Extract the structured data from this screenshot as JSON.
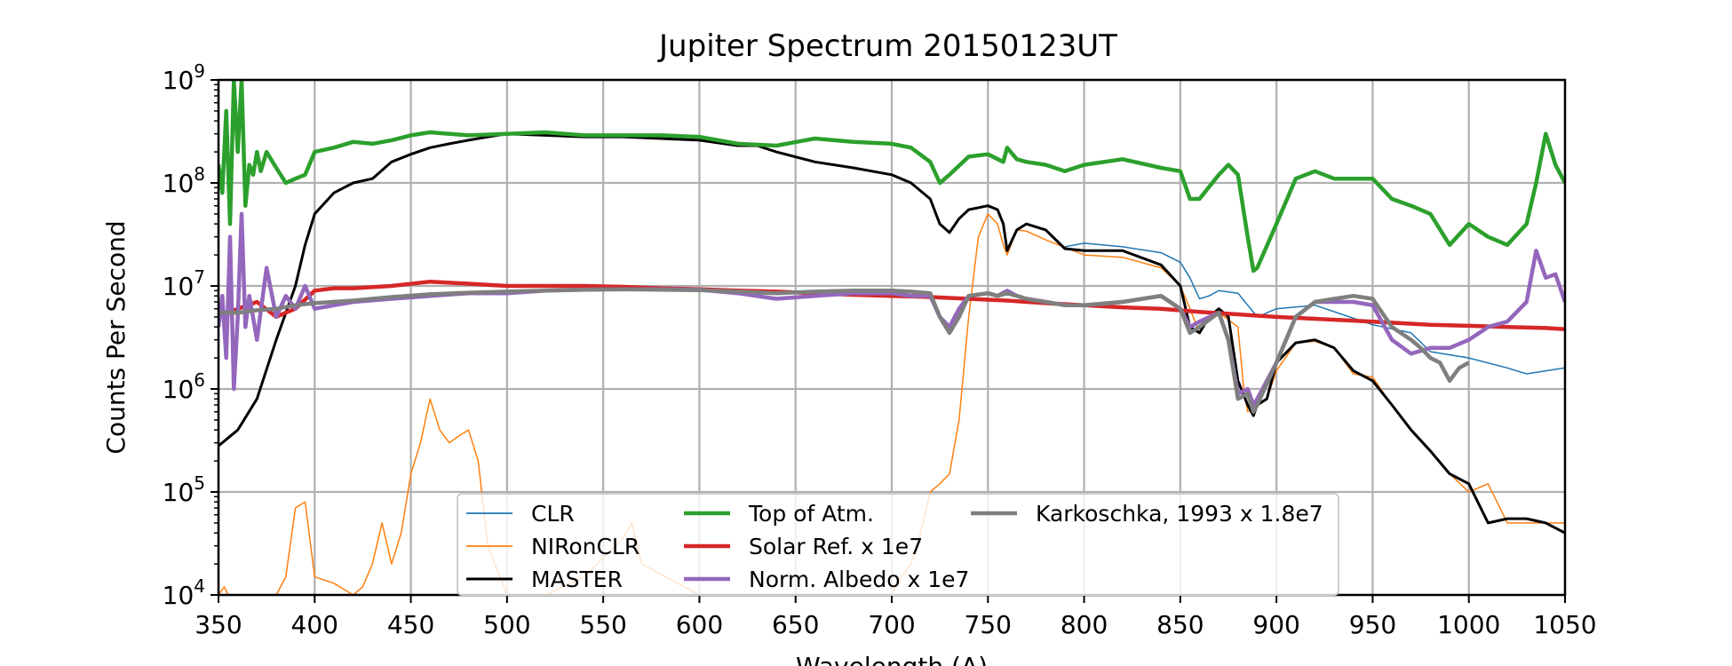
{
  "chart_data": {
    "type": "line",
    "title": "Jupiter Spectrum 20150123UT",
    "xlabel": "Wavelength (A)",
    "ylabel": "Counts Per Second",
    "xlim": [
      350,
      1050
    ],
    "ylim": [
      10000,
      1000000000
    ],
    "yscale": "log",
    "grid": true,
    "legend_position": "lower-center",
    "x_ticks": [
      "350",
      "400",
      "450",
      "500",
      "550",
      "600",
      "650",
      "700",
      "750",
      "800",
      "850",
      "900",
      "950",
      "1000",
      "1050"
    ],
    "y_ticks": [
      {
        "base": "10",
        "exp": "4",
        "value": 10000
      },
      {
        "base": "10",
        "exp": "5",
        "value": 100000
      },
      {
        "base": "10",
        "exp": "6",
        "value": 1000000
      },
      {
        "base": "10",
        "exp": "7",
        "value": 10000000
      },
      {
        "base": "10",
        "exp": "8",
        "value": 100000000
      },
      {
        "base": "10",
        "exp": "9",
        "value": 1000000000
      }
    ],
    "series": [
      {
        "name": "CLR",
        "color": "#1f77b4",
        "width": 1.5,
        "x": [
          790,
          800,
          820,
          840,
          850,
          855,
          860,
          865,
          870,
          880,
          890,
          900,
          920,
          950,
          970,
          980,
          1000,
          1020,
          1030,
          1040,
          1050
        ],
        "y": [
          24000000.0,
          26000000.0,
          24000000.0,
          21000000.0,
          17000000.0,
          12000000.0,
          7500000.0,
          8000000.0,
          9000000.0,
          8500000.0,
          5000000.0,
          6000000.0,
          6500000.0,
          4200000.0,
          3500000.0,
          2300000.0,
          2000000.0,
          1600000.0,
          1400000.0,
          1500000.0,
          1600000.0
        ]
      },
      {
        "name": "NIRonCLR",
        "color": "#ff7f0e",
        "width": 1.5,
        "x": [
          350,
          353,
          355,
          360,
          370,
          380,
          385,
          390,
          395,
          400,
          410,
          420,
          425,
          430,
          435,
          440,
          445,
          450,
          455,
          460,
          465,
          470,
          475,
          480,
          485,
          490,
          500,
          520,
          540,
          560,
          565,
          570,
          600,
          650,
          700,
          705,
          710,
          715,
          720,
          725,
          730,
          735,
          740,
          745,
          750,
          755,
          758,
          760,
          765,
          770,
          780,
          800,
          820,
          840,
          850,
          855,
          860,
          865,
          870,
          880,
          883,
          885,
          890,
          895,
          900,
          910,
          920,
          930,
          940,
          950,
          960,
          970,
          980,
          990,
          1000,
          1010,
          1020,
          1030,
          1040,
          1050
        ],
        "y": [
          10000.0,
          12000.0,
          10000.0,
          10000.0,
          10000.0,
          10000.0,
          15000.0,
          70000.0,
          80000.0,
          15000.0,
          13000.0,
          10000.0,
          12000.0,
          20000.0,
          50000.0,
          20000.0,
          40000.0,
          150000.0,
          300000.0,
          800000.0,
          400000.0,
          300000.0,
          350000.0,
          400000.0,
          200000.0,
          30000.0,
          10000.0,
          10000.0,
          15000.0,
          35000.0,
          50000.0,
          20000.0,
          10000.0,
          10000.0,
          10000.0,
          15000.0,
          20000.0,
          40000.0,
          100000.0,
          120000.0,
          150000.0,
          500000.0,
          5000000.0,
          30000000.0,
          50000000.0,
          40000000.0,
          25000000.0,
          20000000.0,
          35000000.0,
          34000000.0,
          28000000.0,
          20000000.0,
          19000000.0,
          15000000.0,
          10000000.0,
          6000000.0,
          3500000.0,
          5000000.0,
          5500000.0,
          4000000.0,
          1000000.0,
          600000.0,
          700000.0,
          800000.0,
          1500000.0,
          2800000.0,
          2900000.0,
          2500000.0,
          1400000.0,
          1300000.0,
          700000.0,
          400000.0,
          250000.0,
          150000.0,
          100000.0,
          120000.0,
          50000.0,
          50000.0,
          50000.0,
          50000.0
        ]
      },
      {
        "name": "MASTER",
        "color": "#000000",
        "width": 3,
        "x": [
          350,
          360,
          370,
          380,
          390,
          395,
          400,
          410,
          420,
          430,
          440,
          450,
          460,
          470,
          480,
          490,
          500,
          520,
          540,
          560,
          580,
          600,
          620,
          630,
          640,
          660,
          680,
          700,
          710,
          720,
          725,
          730,
          735,
          740,
          750,
          755,
          758,
          760,
          765,
          770,
          780,
          790,
          800,
          820,
          840,
          850,
          855,
          860,
          865,
          870,
          875,
          880,
          885,
          888,
          890,
          895,
          900,
          910,
          920,
          930,
          940,
          950,
          960,
          970,
          980,
          990,
          1000,
          1010,
          1020,
          1030,
          1040,
          1050
        ],
        "y": [
          280000.0,
          400000.0,
          800000.0,
          3000000.0,
          10000000.0,
          25000000.0,
          50000000.0,
          80000000.0,
          100000000.0,
          110000000.0,
          160000000.0,
          190000000.0,
          220000000.0,
          240000000.0,
          260000000.0,
          280000000.0,
          300000000.0,
          290000000.0,
          280000000.0,
          280000000.0,
          270000000.0,
          260000000.0,
          230000000.0,
          230000000.0,
          200000000.0,
          160000000.0,
          140000000.0,
          120000000.0,
          100000000.0,
          70000000.0,
          40000000.0,
          33000000.0,
          45000000.0,
          55000000.0,
          60000000.0,
          55000000.0,
          40000000.0,
          22000000.0,
          35000000.0,
          40000000.0,
          35000000.0,
          23000000.0,
          22000000.0,
          22000000.0,
          16000000.0,
          10000000.0,
          4000000.0,
          3500000.0,
          5000000.0,
          6000000.0,
          5000000.0,
          1200000.0,
          700000.0,
          550000.0,
          700000.0,
          800000.0,
          1800000.0,
          2800000.0,
          3000000.0,
          2500000.0,
          1500000.0,
          1200000.0,
          700000.0,
          400000.0,
          250000.0,
          150000.0,
          120000.0,
          50000.0,
          55000.0,
          55000.0,
          50000.0,
          40000.0
        ]
      },
      {
        "name": "Top of Atm.",
        "color": "#2ca02c",
        "width": 4.5,
        "x": [
          350,
          352,
          354,
          356,
          358,
          360,
          362,
          364,
          366,
          368,
          370,
          372,
          375,
          380,
          385,
          390,
          395,
          400,
          410,
          420,
          430,
          440,
          450,
          460,
          470,
          480,
          500,
          520,
          540,
          560,
          580,
          600,
          620,
          640,
          660,
          680,
          700,
          710,
          720,
          725,
          730,
          740,
          750,
          758,
          760,
          765,
          770,
          780,
          790,
          800,
          820,
          840,
          850,
          855,
          860,
          870,
          875,
          880,
          885,
          888,
          890,
          900,
          910,
          920,
          930,
          940,
          950,
          960,
          970,
          980,
          990,
          1000,
          1010,
          1020,
          1030,
          1035,
          1040,
          1045,
          1050
        ],
        "y": [
          150000000.0,
          80000000.0,
          500000000.0,
          40000000.0,
          1000000000.0,
          200000000.0,
          1000000000.0,
          60000000.0,
          150000000.0,
          120000000.0,
          200000000.0,
          130000000.0,
          200000000.0,
          140000000.0,
          100000000.0,
          110000000.0,
          120000000.0,
          200000000.0,
          220000000.0,
          250000000.0,
          240000000.0,
          260000000.0,
          290000000.0,
          310000000.0,
          300000000.0,
          290000000.0,
          300000000.0,
          310000000.0,
          290000000.0,
          290000000.0,
          290000000.0,
          280000000.0,
          240000000.0,
          230000000.0,
          270000000.0,
          250000000.0,
          240000000.0,
          220000000.0,
          160000000.0,
          100000000.0,
          120000000.0,
          180000000.0,
          190000000.0,
          160000000.0,
          220000000.0,
          170000000.0,
          160000000.0,
          150000000.0,
          130000000.0,
          150000000.0,
          170000000.0,
          140000000.0,
          130000000.0,
          70000000.0,
          70000000.0,
          120000000.0,
          150000000.0,
          120000000.0,
          30000000.0,
          14000000.0,
          15000000.0,
          40000000.0,
          110000000.0,
          130000000.0,
          110000000.0,
          110000000.0,
          110000000.0,
          70000000.0,
          60000000.0,
          50000000.0,
          25000000.0,
          40000000.0,
          30000000.0,
          25000000.0,
          40000000.0,
          100000000.0,
          300000000.0,
          150000000.0,
          100000000.0
        ]
      },
      {
        "name": "Solar Ref. x 1e7",
        "color": "#d62728",
        "width": 4.5,
        "x": [
          350,
          360,
          370,
          380,
          385,
          390,
          400,
          410,
          420,
          440,
          460,
          480,
          500,
          520,
          540,
          560,
          580,
          600,
          620,
          640,
          660,
          680,
          700,
          720,
          740,
          760,
          780,
          800,
          820,
          840,
          860,
          880,
          900,
          920,
          940,
          960,
          980,
          1000,
          1020,
          1040,
          1050
        ],
        "y": [
          5000000.0,
          6000000.0,
          7000000.0,
          5000000.0,
          5500000.0,
          6000000.0,
          9000000.0,
          9500000.0,
          9500000.0,
          10000000.0,
          11000000.0,
          10500000.0,
          10000000.0,
          10000000.0,
          10000000.0,
          9800000.0,
          9500000.0,
          9300000.0,
          9000000.0,
          8800000.0,
          8500000.0,
          8200000.0,
          8000000.0,
          7800000.0,
          7500000.0,
          7200000.0,
          6800000.0,
          6500000.0,
          6200000.0,
          6000000.0,
          5600000.0,
          5300000.0,
          5000000.0,
          4800000.0,
          4600000.0,
          4400000.0,
          4200000.0,
          4100000.0,
          4000000.0,
          3900000.0,
          3800000.0
        ]
      },
      {
        "name": "Norm. Albedo x 1e7",
        "color": "#9467bd",
        "width": 4.5,
        "x": [
          350,
          352,
          354,
          356,
          358,
          360,
          362,
          364,
          366,
          370,
          375,
          380,
          385,
          390,
          395,
          400,
          420,
          440,
          460,
          480,
          500,
          520,
          540,
          560,
          580,
          600,
          620,
          640,
          660,
          680,
          700,
          710,
          720,
          725,
          730,
          735,
          740,
          750,
          755,
          760,
          765,
          770,
          780,
          790,
          800,
          820,
          840,
          850,
          855,
          860,
          870,
          875,
          880,
          885,
          888,
          890,
          900,
          910,
          920,
          930,
          940,
          950,
          960,
          970,
          980,
          990,
          1000,
          1010,
          1020,
          1030,
          1035,
          1040,
          1045,
          1050
        ],
        "y": [
          4000000.0,
          8000000.0,
          2000000.0,
          30000000.0,
          1000000.0,
          5000000.0,
          50000000.0,
          4000000.0,
          8000000.0,
          3000000.0,
          15000000.0,
          5000000.0,
          8000000.0,
          6000000.0,
          10000000.0,
          6000000.0,
          7000000.0,
          7500000.0,
          8000000.0,
          8500000.0,
          8500000.0,
          9000000.0,
          9200000.0,
          9300000.0,
          9300000.0,
          9200000.0,
          8500000.0,
          7500000.0,
          8000000.0,
          8500000.0,
          8500000.0,
          8000000.0,
          8000000.0,
          5000000.0,
          4000000.0,
          6000000.0,
          8000000.0,
          8500000.0,
          8000000.0,
          9000000.0,
          8000000.0,
          7500000.0,
          7000000.0,
          6500000.0,
          6500000.0,
          7000000.0,
          8000000.0,
          6000000.0,
          4000000.0,
          4500000.0,
          5500000.0,
          3000000.0,
          900000.0,
          1000000.0,
          700000.0,
          800000.0,
          1800000.0,
          5000000.0,
          7000000.0,
          7000000.0,
          7000000.0,
          6500000.0,
          3000000.0,
          2200000.0,
          2500000.0,
          2500000.0,
          3000000.0,
          4000000.0,
          4500000.0,
          7000000.0,
          22000000.0,
          12000000.0,
          13000000.0,
          7000000.0
        ]
      },
      {
        "name": "Karkoschka, 1993 x 1.8e7",
        "color": "#7f7f7f",
        "width": 4.5,
        "x": [
          350,
          360,
          370,
          380,
          390,
          400,
          420,
          440,
          460,
          480,
          500,
          520,
          540,
          560,
          580,
          600,
          620,
          640,
          660,
          680,
          700,
          710,
          720,
          725,
          730,
          735,
          740,
          750,
          755,
          760,
          765,
          770,
          780,
          790,
          800,
          820,
          840,
          850,
          855,
          860,
          870,
          875,
          880,
          885,
          888,
          890,
          900,
          910,
          920,
          930,
          940,
          950,
          960,
          970,
          975,
          980,
          985,
          990,
          995,
          1000
        ],
        "y": [
          5500000.0,
          5500000.0,
          5800000.0,
          6000000.0,
          6500000.0,
          6800000.0,
          7200000.0,
          7800000.0,
          8300000.0,
          8600000.0,
          8800000.0,
          9000000.0,
          9200000.0,
          9300000.0,
          9200000.0,
          9100000.0,
          8800000.0,
          8500000.0,
          8800000.0,
          9000000.0,
          9000000.0,
          8800000.0,
          8500000.0,
          5000000.0,
          3500000.0,
          5000000.0,
          8000000.0,
          8500000.0,
          8000000.0,
          8500000.0,
          8000000.0,
          7500000.0,
          7000000.0,
          6500000.0,
          6500000.0,
          7000000.0,
          8000000.0,
          6000000.0,
          3500000.0,
          4000000.0,
          5500000.0,
          3000000.0,
          800000.0,
          900000.0,
          600000.0,
          700000.0,
          1800000.0,
          5000000.0,
          7000000.0,
          7500000.0,
          8000000.0,
          7500000.0,
          4000000.0,
          3000000.0,
          2500000.0,
          2000000.0,
          1800000.0,
          1200000.0,
          1600000.0,
          1800000.0
        ]
      }
    ]
  }
}
